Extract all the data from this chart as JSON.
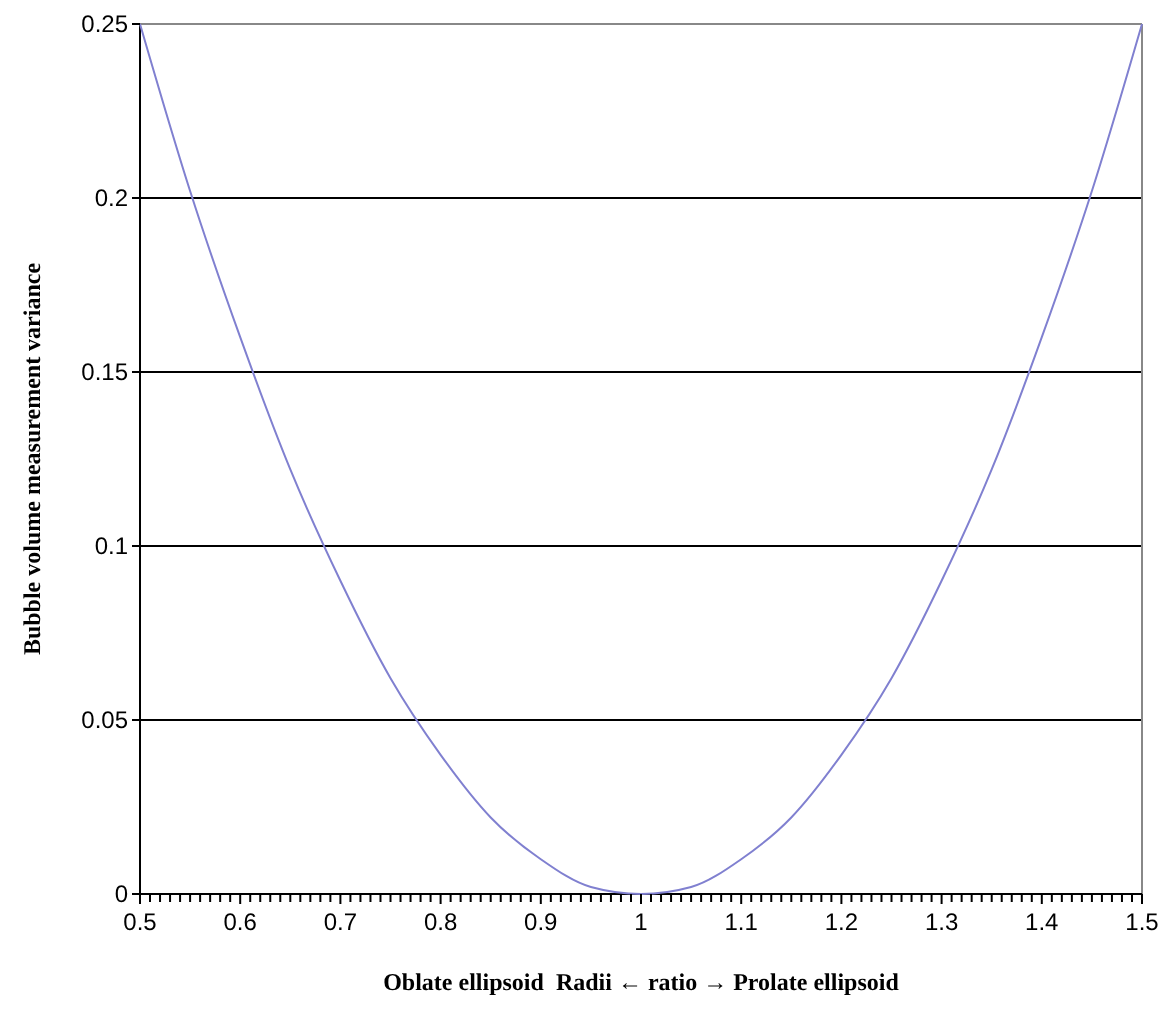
{
  "chart_data": {
    "type": "line",
    "xlabel": "Oblate ellipsoid  Radii ← ratio → Prolate ellipsoid",
    "ylabel": "Bubble volume measurement variance",
    "x": [
      0.5,
      0.55,
      0.6,
      0.65,
      0.7,
      0.75,
      0.8,
      0.85,
      0.9,
      0.95,
      1,
      1.05,
      1.1,
      1.15,
      1.2,
      1.25,
      1.3,
      1.35,
      1.4,
      1.45,
      1.5
    ],
    "series": [
      {
        "color": "#8080d0",
        "values": [
          0.25,
          0.202,
          0.16,
          0.122,
          0.09,
          0.062,
          0.04,
          0.022,
          0.01,
          0.002,
          0,
          0.002,
          0.01,
          0.022,
          0.04,
          0.062,
          0.09,
          0.122,
          0.16,
          0.202,
          0.25
        ]
      }
    ],
    "xlim": [
      0.5,
      1.5
    ],
    "xticks": [
      0.5,
      {
        "value": 0.51,
        "label": null
      },
      {
        "value": 0.52,
        "label": null
      },
      {
        "value": 0.53,
        "label": null
      },
      {
        "value": 0.54,
        "label": null
      },
      {
        "value": 0.55,
        "label": null
      },
      {
        "value": 0.56,
        "label": null
      },
      {
        "value": 0.57,
        "label": null
      },
      {
        "value": 0.58,
        "label": null
      },
      {
        "value": 0.59,
        "label": null
      },
      0.6,
      {
        "value": 0.61,
        "label": null
      },
      {
        "value": 0.62,
        "label": null
      },
      {
        "value": 0.63,
        "label": null
      },
      {
        "value": 0.64,
        "label": null
      },
      {
        "value": 0.65,
        "label": null
      },
      {
        "value": 0.66,
        "label": null
      },
      {
        "value": 0.67,
        "label": null
      },
      {
        "value": 0.68,
        "label": null
      },
      {
        "value": 0.69,
        "label": null
      },
      0.7,
      {
        "value": 0.71,
        "label": null
      },
      {
        "value": 0.72,
        "label": null
      },
      {
        "value": 0.73,
        "label": null
      },
      {
        "value": 0.74,
        "label": null
      },
      {
        "value": 0.75,
        "label": null
      },
      {
        "value": 0.76,
        "label": null
      },
      {
        "value": 0.77,
        "label": null
      },
      {
        "value": 0.78,
        "label": null
      },
      {
        "value": 0.79,
        "label": null
      },
      0.8,
      {
        "value": 0.81,
        "label": null
      },
      {
        "value": 0.82,
        "label": null
      },
      {
        "value": 0.83,
        "label": null
      },
      {
        "value": 0.84,
        "label": null
      },
      {
        "value": 0.85,
        "label": null
      },
      {
        "value": 0.86,
        "label": null
      },
      {
        "value": 0.87,
        "label": null
      },
      {
        "value": 0.88,
        "label": null
      },
      {
        "value": 0.89,
        "label": null
      },
      0.9,
      {
        "value": 0.91,
        "label": null
      },
      {
        "value": 0.92,
        "label": null
      },
      {
        "value": 0.93,
        "label": null
      },
      {
        "value": 0.94,
        "label": null
      },
      {
        "value": 0.95,
        "label": null
      },
      {
        "value": 0.96,
        "label": null
      },
      {
        "value": 0.97,
        "label": null
      },
      {
        "value": 0.98,
        "label": null
      },
      {
        "value": 0.99,
        "label": null
      },
      1,
      {
        "value": 1.01,
        "label": null
      },
      {
        "value": 1.02,
        "label": null
      },
      {
        "value": 1.03,
        "label": null
      },
      {
        "value": 1.04,
        "label": null
      },
      {
        "value": 1.05,
        "label": null
      },
      {
        "value": 1.06,
        "label": null
      },
      {
        "value": 1.07,
        "label": null
      },
      {
        "value": 1.08,
        "label": null
      },
      {
        "value": 1.09,
        "label": null
      },
      1.1,
      {
        "value": 1.11,
        "label": null
      },
      {
        "value": 1.12,
        "label": null
      },
      {
        "value": 1.13,
        "label": null
      },
      {
        "value": 1.14,
        "label": null
      },
      {
        "value": 1.15,
        "label": null
      },
      {
        "value": 1.16,
        "label": null
      },
      {
        "value": 1.17,
        "label": null
      },
      {
        "value": 1.18,
        "label": null
      },
      {
        "value": 1.19,
        "label": null
      },
      1.2,
      {
        "value": 1.21,
        "label": null
      },
      {
        "value": 1.22,
        "label": null
      },
      {
        "value": 1.23,
        "label": null
      },
      {
        "value": 1.24,
        "label": null
      },
      {
        "value": 1.25,
        "label": null
      },
      {
        "value": 1.26,
        "label": null
      },
      {
        "value": 1.27,
        "label": null
      },
      {
        "value": 1.28,
        "label": null
      },
      {
        "value": 1.29,
        "label": null
      },
      1.3,
      {
        "value": 1.31,
        "label": null
      },
      {
        "value": 1.32,
        "label": null
      },
      {
        "value": 1.33,
        "label": null
      },
      {
        "value": 1.34,
        "label": null
      },
      {
        "value": 1.35,
        "label": null
      },
      {
        "value": 1.36,
        "label": null
      },
      {
        "value": 1.37,
        "label": null
      },
      {
        "value": 1.38,
        "label": null
      },
      {
        "value": 1.39,
        "label": null
      },
      1.4,
      {
        "value": 1.41,
        "label": null
      },
      {
        "value": 1.42,
        "label": null
      },
      {
        "value": 1.43,
        "label": null
      },
      {
        "value": 1.44,
        "label": null
      },
      {
        "value": 1.45,
        "label": null
      },
      {
        "value": 1.46,
        "label": null
      },
      {
        "value": 1.47,
        "label": null
      },
      {
        "value": 1.48,
        "label": null
      },
      {
        "value": 1.49,
        "label": null
      },
      1.5
    ],
    "ylim": [
      0,
      0.25
    ],
    "yticks": [
      0,
      0.05,
      0.1,
      0.15,
      0.2,
      0.25
    ],
    "grid": "y"
  }
}
